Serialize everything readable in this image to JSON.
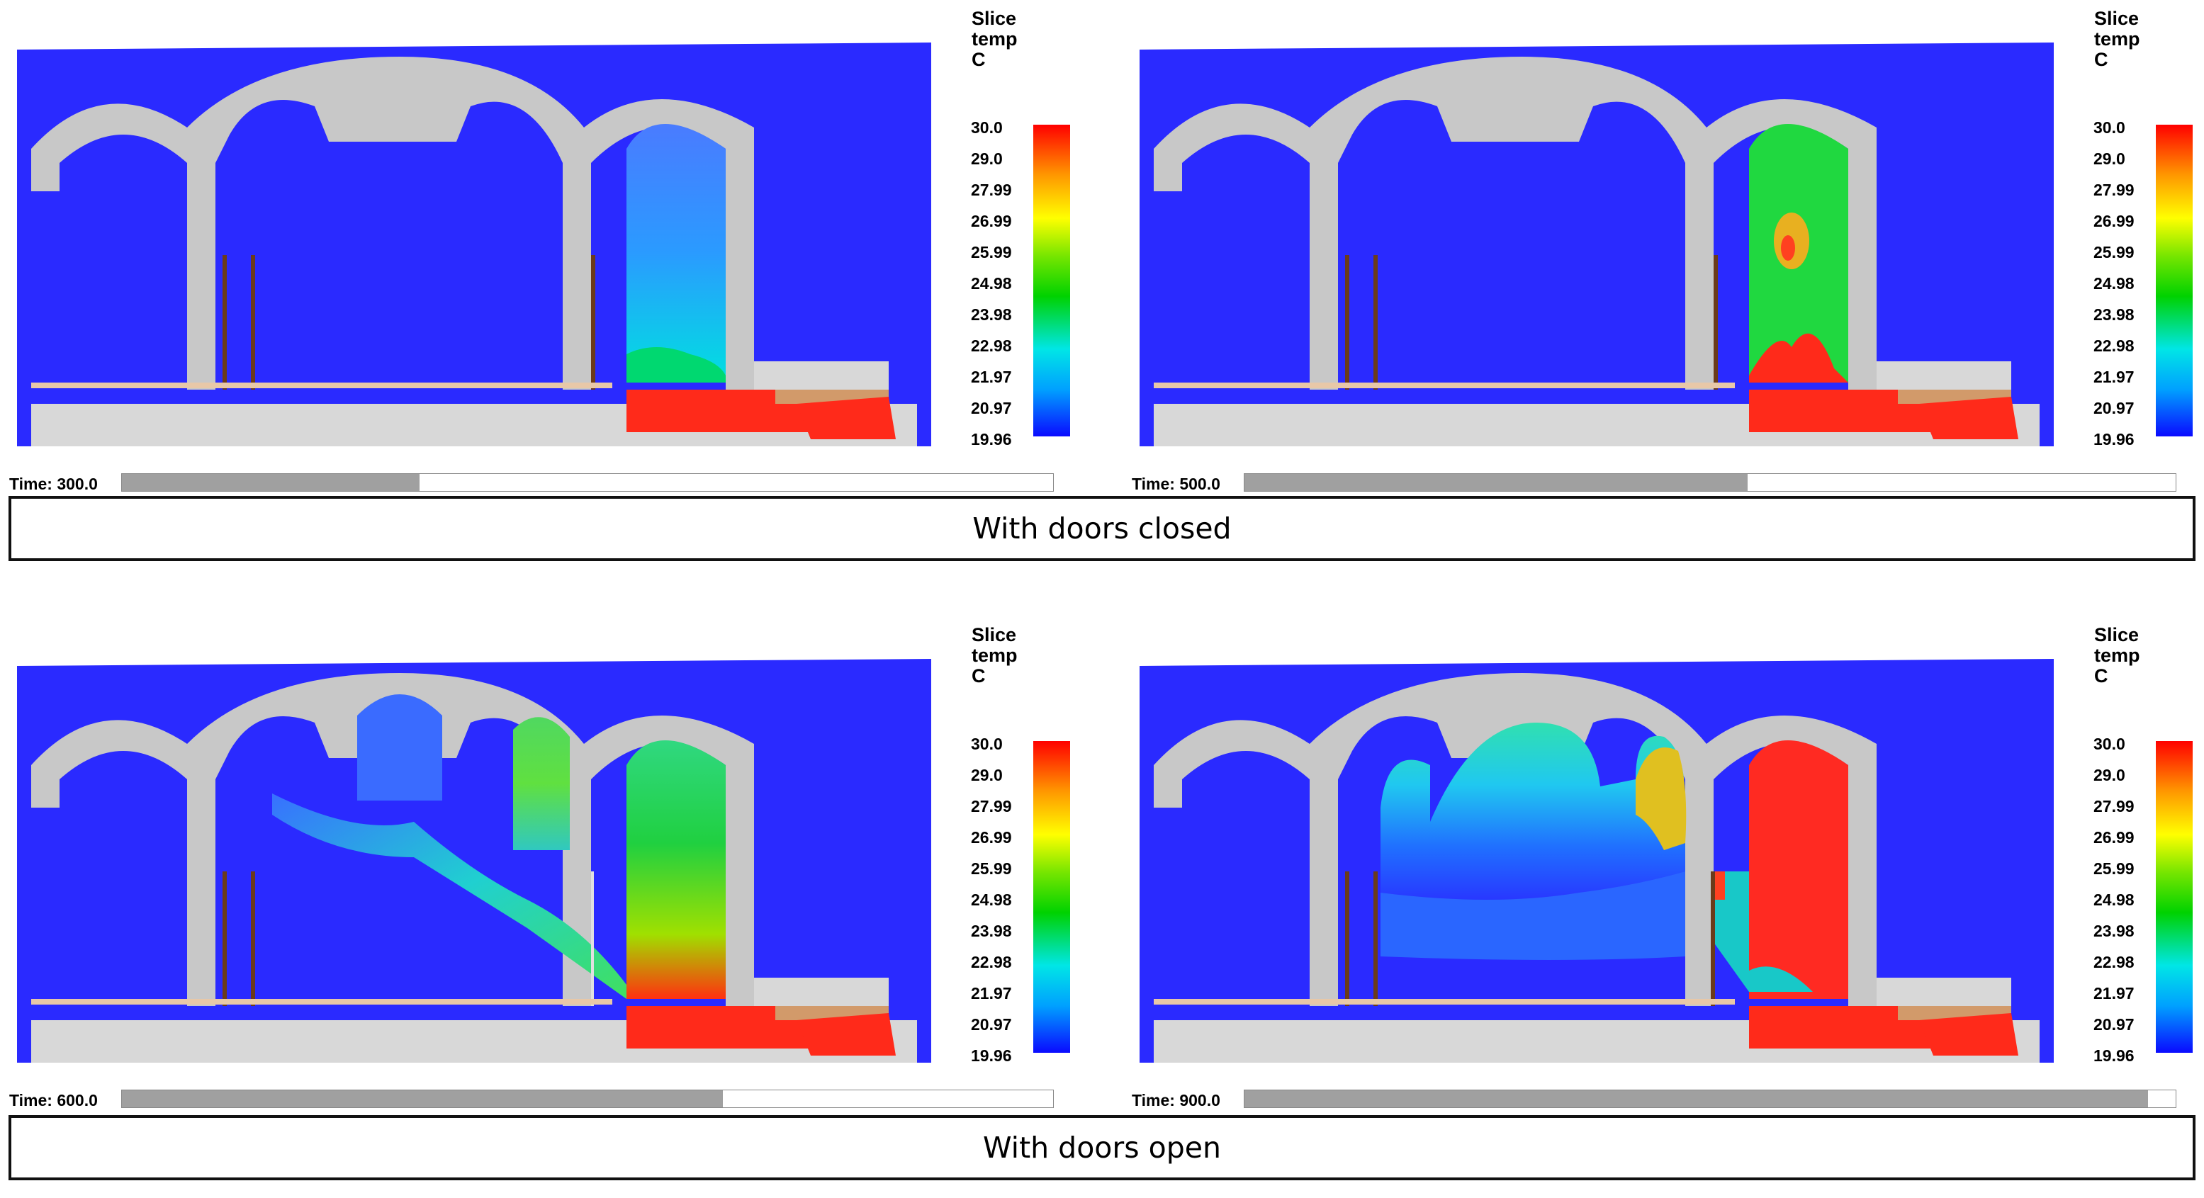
{
  "legend": {
    "line1": "Slice",
    "line2": "temp",
    "line3": "C",
    "ticks": [
      "30.0",
      "29.0",
      "27.99",
      "26.99",
      "25.99",
      "24.98",
      "23.98",
      "22.98",
      "21.97",
      "20.97",
      "19.96"
    ]
  },
  "panels": [
    {
      "time_label": "Time: 300.0",
      "progress": 0.32
    },
    {
      "time_label": "Time: 500.0",
      "progress": 0.54
    },
    {
      "time_label": "Time: 600.0",
      "progress": 0.645
    },
    {
      "time_label": "Time: 900.0",
      "progress": 0.97
    }
  ],
  "captions": {
    "closed": "With doors closed",
    "open": "With doors open"
  },
  "colors": {
    "background_slice": "#2833ff",
    "structure": "#c8c8c8",
    "hot": "#ff2a1a",
    "cool": "#1a1aff"
  }
}
